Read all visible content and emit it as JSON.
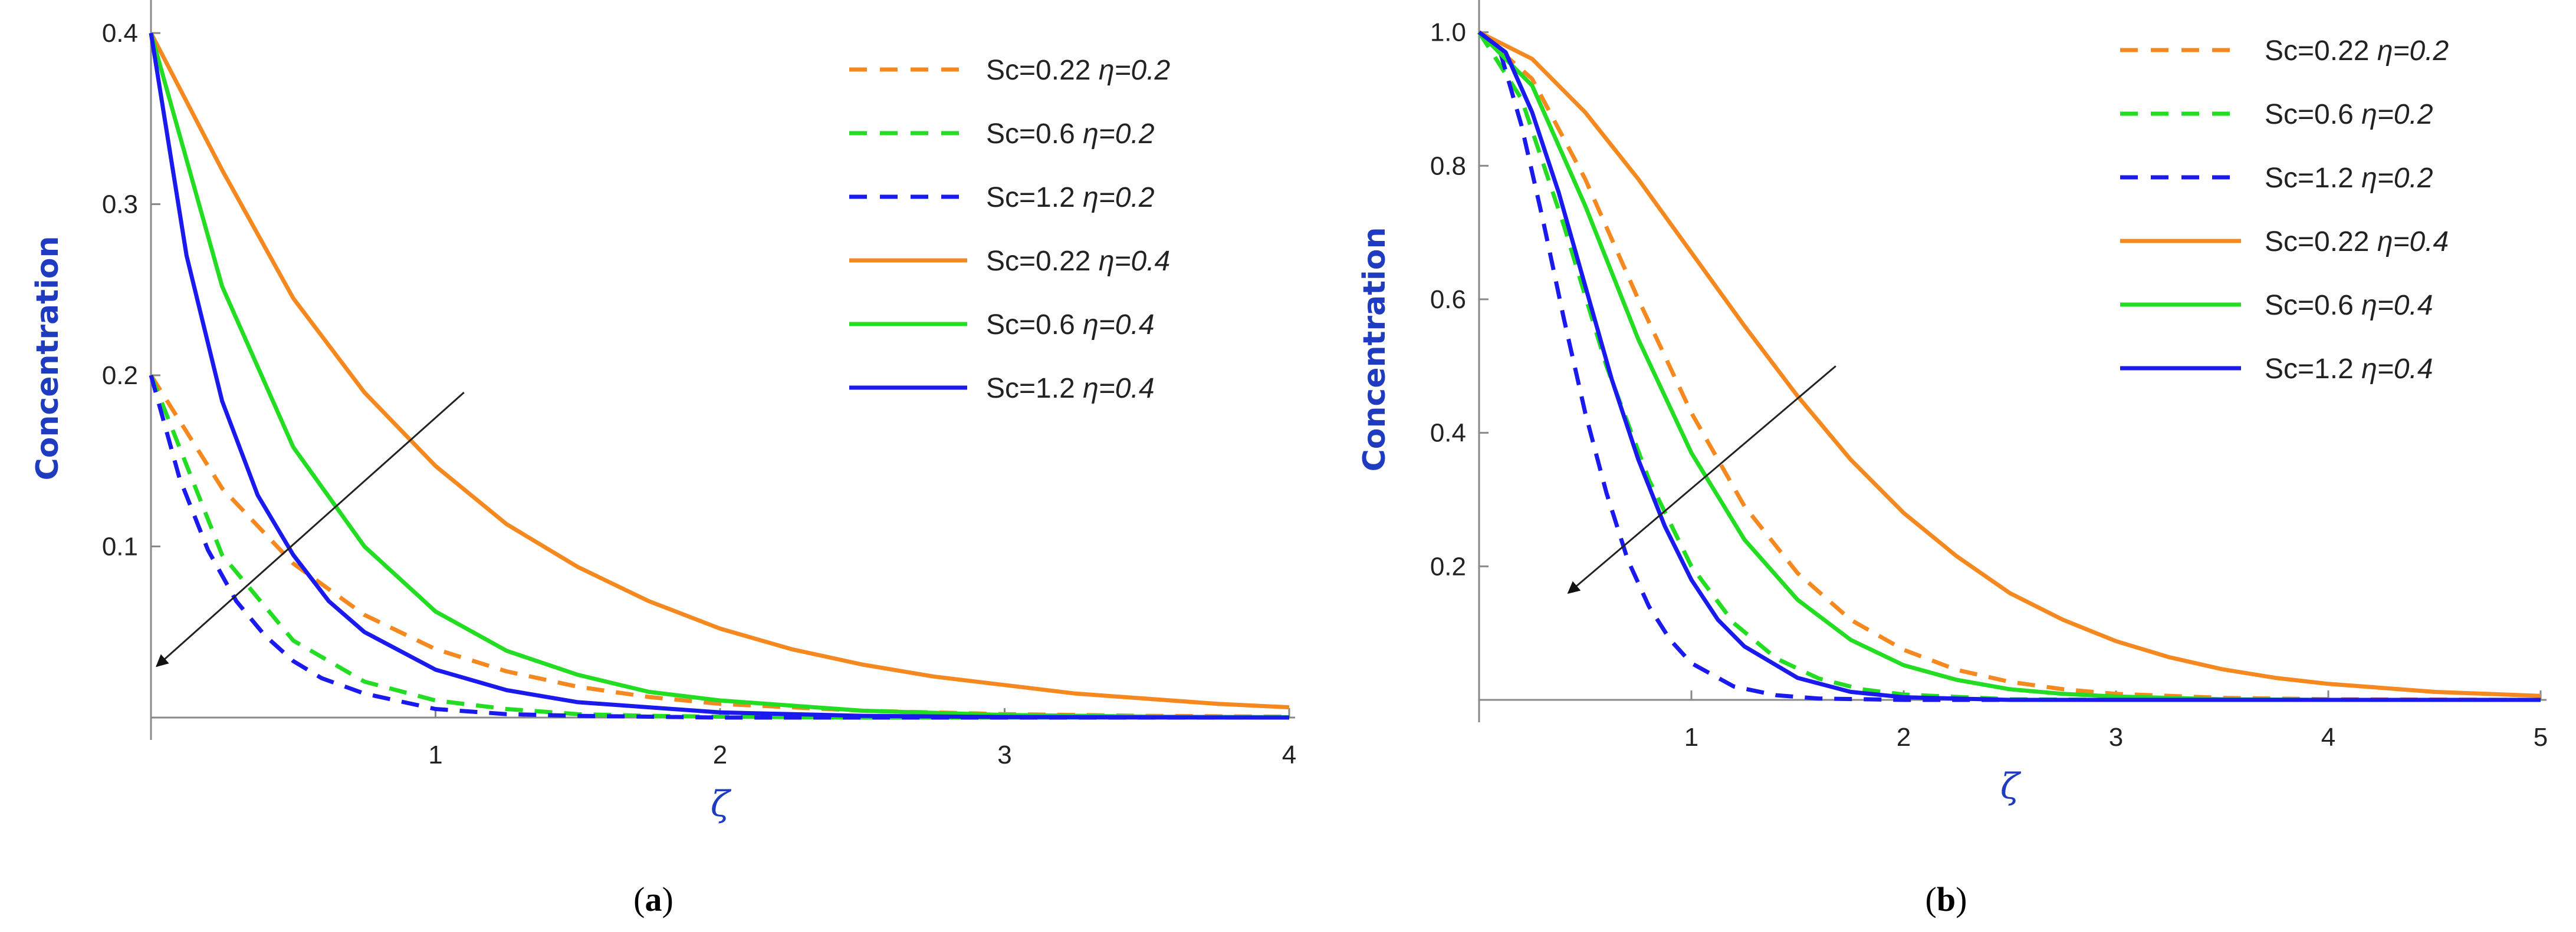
{
  "chart_data": [
    {
      "type": "line",
      "panel_label": "a",
      "xlabel": "ζ",
      "ylabel": "Concentration",
      "xlim": [
        0,
        4
      ],
      "ylim": [
        0,
        0.42
      ],
      "x_ticks": [
        1,
        2,
        3,
        4
      ],
      "y_ticks": [
        0.1,
        0.2,
        0.3,
        0.4
      ],
      "legend_position": "top-right",
      "series": [
        {
          "name": "Sc=0.22 η=0.2",
          "sc": "Sc=0.22",
          "eta": "η=0.2",
          "color": "#f5891f",
          "dash": "dashed",
          "x": [
            0,
            0.25,
            0.5,
            0.75,
            1,
            1.25,
            1.5,
            1.75,
            2,
            2.5,
            3,
            3.5,
            4
          ],
          "y": [
            0.2,
            0.134,
            0.09,
            0.06,
            0.04,
            0.027,
            0.018,
            0.012,
            0.008,
            0.004,
            0.002,
            0.001,
            0.0005
          ]
        },
        {
          "name": "Sc=0.6 η=0.2",
          "sc": "Sc=0.6",
          "eta": "η=0.2",
          "color": "#22dd22",
          "dash": "dashed",
          "x": [
            0,
            0.25,
            0.5,
            0.75,
            1,
            1.25,
            1.5,
            1.75,
            2,
            2.5,
            3,
            3.5,
            4
          ],
          "y": [
            0.2,
            0.095,
            0.045,
            0.021,
            0.01,
            0.005,
            0.002,
            0.001,
            0.0005,
            0,
            0,
            0,
            0
          ]
        },
        {
          "name": "Sc=1.2 η=0.2",
          "sc": "Sc=1.2",
          "eta": "η=0.2",
          "color": "#1a1aee",
          "dash": "dashed",
          "x": [
            0,
            0.1,
            0.2,
            0.3,
            0.4,
            0.5,
            0.6,
            0.75,
            1,
            1.25,
            1.5,
            2,
            3,
            4
          ],
          "y": [
            0.2,
            0.14,
            0.098,
            0.068,
            0.048,
            0.033,
            0.023,
            0.014,
            0.005,
            0.002,
            0.001,
            0,
            0,
            0
          ]
        },
        {
          "name": "Sc=0.22 η=0.4",
          "sc": "Sc=0.22",
          "eta": "η=0.4",
          "color": "#f5891f",
          "dash": "solid",
          "x": [
            0,
            0.25,
            0.5,
            0.75,
            1,
            1.25,
            1.5,
            1.75,
            2,
            2.25,
            2.5,
            2.75,
            3,
            3.25,
            3.5,
            3.75,
            4
          ],
          "y": [
            0.4,
            0.32,
            0.245,
            0.19,
            0.147,
            0.113,
            0.088,
            0.068,
            0.052,
            0.04,
            0.031,
            0.024,
            0.019,
            0.014,
            0.011,
            0.008,
            0.006
          ]
        },
        {
          "name": "Sc=0.6 η=0.4",
          "sc": "Sc=0.6",
          "eta": "η=0.4",
          "color": "#22dd22",
          "dash": "solid",
          "x": [
            0,
            0.25,
            0.5,
            0.75,
            1,
            1.25,
            1.5,
            1.75,
            2,
            2.5,
            3,
            3.5,
            4
          ],
          "y": [
            0.4,
            0.252,
            0.158,
            0.1,
            0.062,
            0.039,
            0.025,
            0.015,
            0.01,
            0.004,
            0.0015,
            0.0006,
            0.0002
          ]
        },
        {
          "name": "Sc=1.2 η=0.4",
          "sc": "Sc=1.2",
          "eta": "η=0.4",
          "color": "#1a1aee",
          "dash": "solid",
          "x": [
            0,
            0.125,
            0.25,
            0.375,
            0.5,
            0.625,
            0.75,
            1,
            1.25,
            1.5,
            2,
            2.5,
            3,
            4
          ],
          "y": [
            0.4,
            0.27,
            0.185,
            0.13,
            0.095,
            0.068,
            0.05,
            0.028,
            0.016,
            0.009,
            0.003,
            0.001,
            0.0003,
            0
          ]
        }
      ],
      "annotation_arrow": {
        "from": [
          1.1,
          0.19
        ],
        "to": [
          0.02,
          0.03
        ],
        "color": "#222222"
      }
    },
    {
      "type": "line",
      "panel_label": "b",
      "xlabel": "ζ",
      "ylabel": "Concentration",
      "xlim": [
        0,
        5
      ],
      "ylim": [
        0,
        1.05
      ],
      "x_ticks": [
        1,
        2,
        3,
        4,
        5
      ],
      "y_ticks": [
        0.2,
        0.4,
        0.6,
        0.8,
        1.0
      ],
      "y_tick_labels": [
        "0.2",
        "0.4",
        "0.6",
        "0.8",
        "1.0"
      ],
      "legend_position": "top-right",
      "series": [
        {
          "name": "Sc=0.22 η=0.2",
          "sc": "Sc=0.22",
          "eta": "η=0.2",
          "color": "#f5891f",
          "dash": "dashed",
          "x": [
            0,
            0.25,
            0.5,
            0.75,
            1,
            1.25,
            1.5,
            1.75,
            2,
            2.25,
            2.5,
            2.75,
            3,
            3.5,
            4,
            5
          ],
          "y": [
            1.0,
            0.93,
            0.78,
            0.6,
            0.43,
            0.29,
            0.19,
            0.12,
            0.075,
            0.045,
            0.027,
            0.016,
            0.009,
            0.003,
            0.001,
            0
          ]
        },
        {
          "name": "Sc=0.6 η=0.2",
          "sc": "Sc=0.6",
          "eta": "η=0.2",
          "color": "#22dd22",
          "dash": "dashed",
          "x": [
            0,
            0.2,
            0.4,
            0.6,
            0.8,
            1,
            1.2,
            1.4,
            1.6,
            1.8,
            2,
            2.5,
            3,
            4,
            5
          ],
          "y": [
            1.0,
            0.9,
            0.71,
            0.5,
            0.33,
            0.2,
            0.115,
            0.062,
            0.032,
            0.016,
            0.008,
            0.001,
            0,
            0,
            0
          ]
        },
        {
          "name": "Sc=1.2 η=0.2",
          "sc": "Sc=1.2",
          "eta": "η=0.2",
          "color": "#1a1aee",
          "dash": "dashed",
          "x": [
            0,
            0.1,
            0.2,
            0.3,
            0.4,
            0.5,
            0.6,
            0.7,
            0.8,
            0.9,
            1,
            1.2,
            1.4,
            1.6,
            2,
            3,
            5
          ],
          "y": [
            1.0,
            0.97,
            0.86,
            0.72,
            0.57,
            0.43,
            0.31,
            0.21,
            0.14,
            0.09,
            0.055,
            0.02,
            0.007,
            0.002,
            0,
            0,
            0
          ]
        },
        {
          "name": "Sc=0.22 η=0.4",
          "sc": "Sc=0.22",
          "eta": "η=0.4",
          "color": "#f5891f",
          "dash": "solid",
          "x": [
            0,
            0.25,
            0.5,
            0.75,
            1,
            1.25,
            1.5,
            1.75,
            2,
            2.25,
            2.5,
            2.75,
            3,
            3.25,
            3.5,
            3.75,
            4,
            4.5,
            5
          ],
          "y": [
            1.0,
            0.96,
            0.88,
            0.78,
            0.67,
            0.56,
            0.455,
            0.36,
            0.28,
            0.215,
            0.16,
            0.12,
            0.088,
            0.064,
            0.046,
            0.033,
            0.024,
            0.012,
            0.006
          ]
        },
        {
          "name": "Sc=0.6 η=0.4",
          "sc": "Sc=0.6",
          "eta": "η=0.4",
          "color": "#22dd22",
          "dash": "solid",
          "x": [
            0,
            0.25,
            0.5,
            0.75,
            1,
            1.25,
            1.5,
            1.75,
            2,
            2.25,
            2.5,
            2.75,
            3,
            3.5,
            4,
            5
          ],
          "y": [
            1.0,
            0.92,
            0.74,
            0.54,
            0.37,
            0.24,
            0.15,
            0.09,
            0.052,
            0.03,
            0.016,
            0.009,
            0.005,
            0.001,
            0,
            0
          ]
        },
        {
          "name": "Sc=1.2 η=0.4",
          "sc": "Sc=1.2",
          "eta": "η=0.4",
          "color": "#1a1aee",
          "dash": "solid",
          "x": [
            0,
            0.125,
            0.25,
            0.375,
            0.5,
            0.625,
            0.75,
            0.875,
            1,
            1.125,
            1.25,
            1.5,
            1.75,
            2,
            2.5,
            3,
            4,
            5
          ],
          "y": [
            1.0,
            0.97,
            0.88,
            0.76,
            0.62,
            0.48,
            0.36,
            0.26,
            0.18,
            0.12,
            0.08,
            0.033,
            0.012,
            0.004,
            0,
            0,
            0,
            0
          ]
        }
      ],
      "annotation_arrow": {
        "from": [
          1.68,
          0.5
        ],
        "to": [
          0.42,
          0.16
        ],
        "color": "#222222"
      }
    }
  ]
}
